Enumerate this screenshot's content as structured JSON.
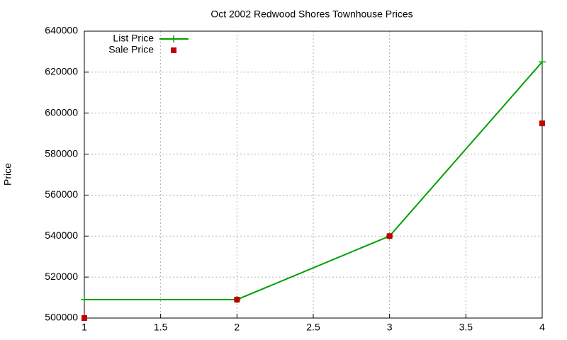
{
  "chart_data": {
    "type": "line",
    "title": "Oct 2002 Redwood Shores Townhouse Prices",
    "y_label": "Price",
    "x": [
      1,
      2,
      3,
      4
    ],
    "series": [
      {
        "name": "List Price",
        "color": "#00a000",
        "mode": "lines+markers",
        "marker": "plus",
        "values": [
          509000,
          509000,
          540000,
          625000
        ]
      },
      {
        "name": "Sale Price",
        "color": "#c00000",
        "mode": "markers",
        "marker": "square",
        "values": [
          500000,
          509000,
          540000,
          595000
        ]
      }
    ],
    "xlim": [
      1,
      4
    ],
    "xticks": [
      1,
      1.5,
      2,
      2.5,
      3,
      3.5,
      4
    ],
    "ylim": [
      500000,
      640000
    ],
    "yticks": [
      500000,
      520000,
      540000,
      560000,
      580000,
      600000,
      620000,
      640000
    ],
    "grid": true,
    "legend": "top-left"
  }
}
